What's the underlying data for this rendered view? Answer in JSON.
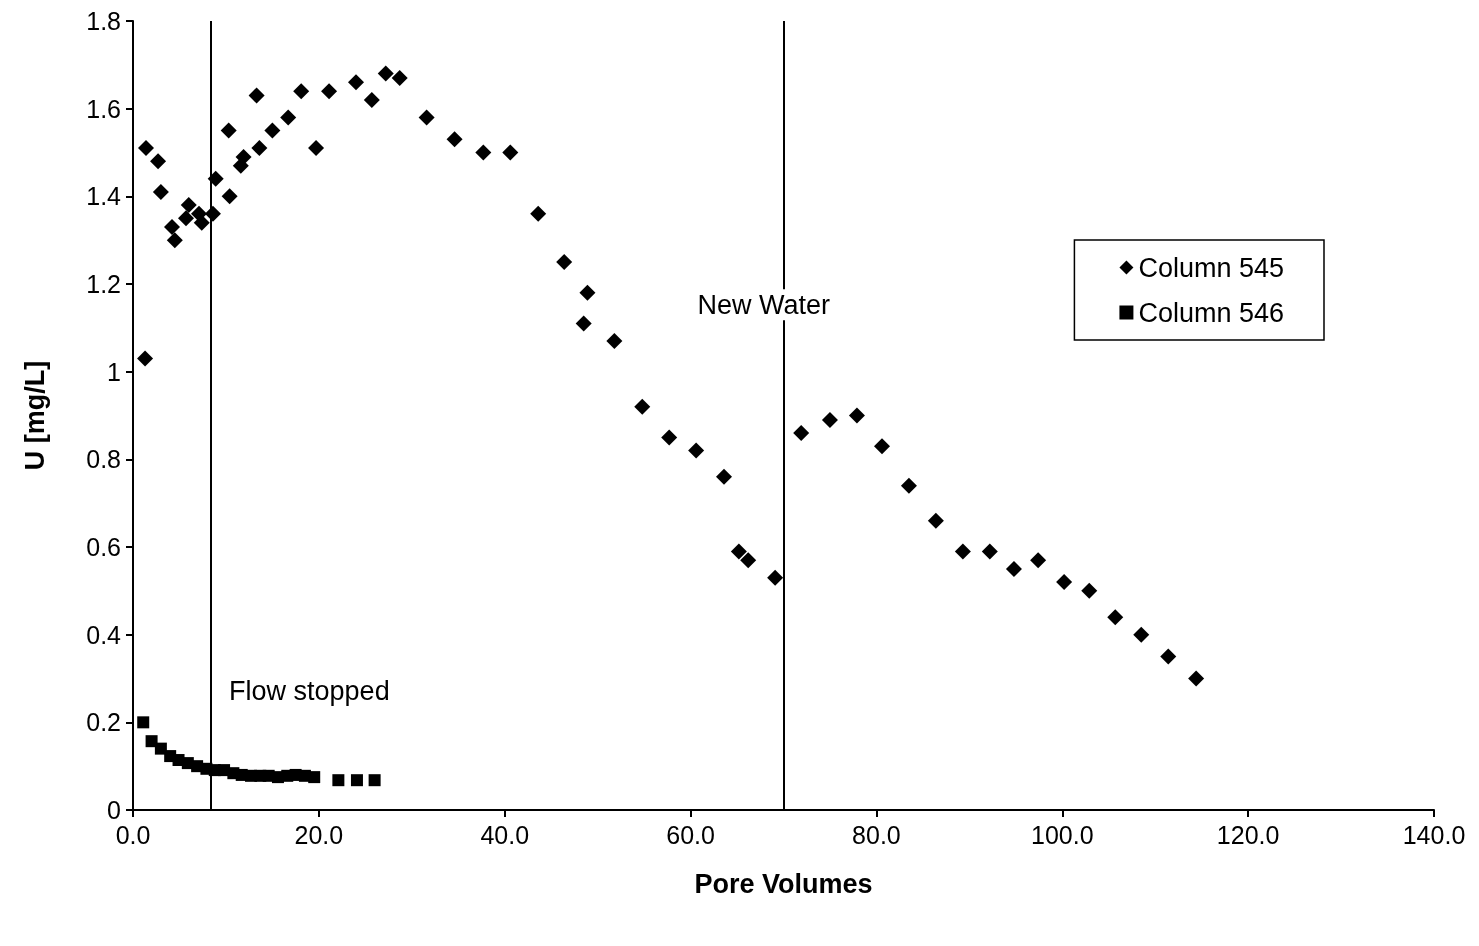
{
  "chart_data": {
    "type": "scatter",
    "xlabel": "Pore Volumes",
    "ylabel": "U [mg/L]",
    "xlim": [
      0,
      140
    ],
    "xticks": [
      {
        "value": 0,
        "label": "0.0"
      },
      {
        "value": 20,
        "label": "20.0"
      },
      {
        "value": 40,
        "label": "40.0"
      },
      {
        "value": 60,
        "label": "60.0"
      },
      {
        "value": 80,
        "label": "80.0"
      },
      {
        "value": 100,
        "label": "100.0"
      },
      {
        "value": 120,
        "label": "120.0"
      },
      {
        "value": 140,
        "label": "140.0"
      }
    ],
    "ylim": [
      0,
      1.8
    ],
    "yticks": [
      0,
      0.2,
      0.4,
      0.6,
      0.8,
      1,
      1.2,
      1.4,
      1.6,
      1.8
    ],
    "grid": false,
    "legend": "right",
    "series": [
      {
        "name": "Column 545",
        "color": "#000000",
        "marker": "diamond",
        "x": [
          1.3,
          1.4,
          2.7,
          3.0,
          4.2,
          4.5,
          5.7,
          6.0,
          7.1,
          7.4,
          8.6,
          8.9,
          10.3,
          10.4,
          11.6,
          11.9,
          13.3,
          13.6,
          14.9,
          15.0,
          16.7,
          18.1,
          19.7,
          21.1,
          24.0,
          25.7,
          27.2,
          28.7,
          31.6,
          34.6,
          37.7,
          40.6,
          43.6,
          46.4,
          48.5,
          48.9,
          51.8,
          54.8,
          57.7,
          60.6,
          63.6,
          65.2,
          66.2,
          69.1,
          71.9,
          75.0,
          77.9,
          80.6,
          83.5,
          86.4,
          89.3,
          92.2,
          94.8,
          97.4,
          100.2,
          102.9,
          105.7,
          108.5,
          111.4,
          114.4
        ],
        "values": [
          1.03,
          1.51,
          1.48,
          1.41,
          1.33,
          1.3,
          1.35,
          1.38,
          1.36,
          1.34,
          1.36,
          1.44,
          1.55,
          1.4,
          1.47,
          1.49,
          1.63,
          1.51,
          null,
          1.55,
          1.58,
          1.64,
          1.51,
          1.64,
          1.66,
          1.62,
          1.68,
          1.67,
          1.58,
          1.53,
          1.5,
          1.5,
          1.36,
          1.25,
          1.11,
          1.18,
          1.07,
          0.92,
          0.85,
          0.82,
          0.76,
          0.59,
          0.57,
          0.53,
          0.86,
          0.89,
          0.9,
          0.83,
          0.74,
          0.66,
          0.59,
          0.59,
          0.55,
          0.57,
          0.52,
          0.5,
          0.44,
          0.4,
          0.35,
          0.3
        ]
      },
      {
        "name": "Column 546",
        "color": "#000000",
        "marker": "square",
        "x": [
          1.1,
          2.0,
          3.0,
          4.0,
          4.9,
          5.9,
          6.9,
          7.9,
          8.8,
          9.8,
          10.8,
          11.7,
          12.7,
          13.7,
          14.6,
          15.6,
          16.6,
          17.5,
          18.5,
          19.5,
          22.1,
          24.1,
          26.0
        ],
        "values": [
          0.2,
          0.157,
          0.14,
          0.123,
          0.114,
          0.107,
          0.1,
          0.094,
          0.091,
          0.091,
          0.084,
          0.08,
          0.078,
          0.078,
          0.078,
          0.075,
          0.078,
          0.08,
          0.078,
          0.075,
          0.068,
          0.068,
          0.068
        ]
      }
    ],
    "ref_lines": [
      {
        "axis": "x",
        "value": 8.4,
        "label": "Flow stopped",
        "color": "#000000"
      },
      {
        "axis": "x",
        "value": 70,
        "label": "New Water",
        "color": "#000000"
      }
    ]
  }
}
